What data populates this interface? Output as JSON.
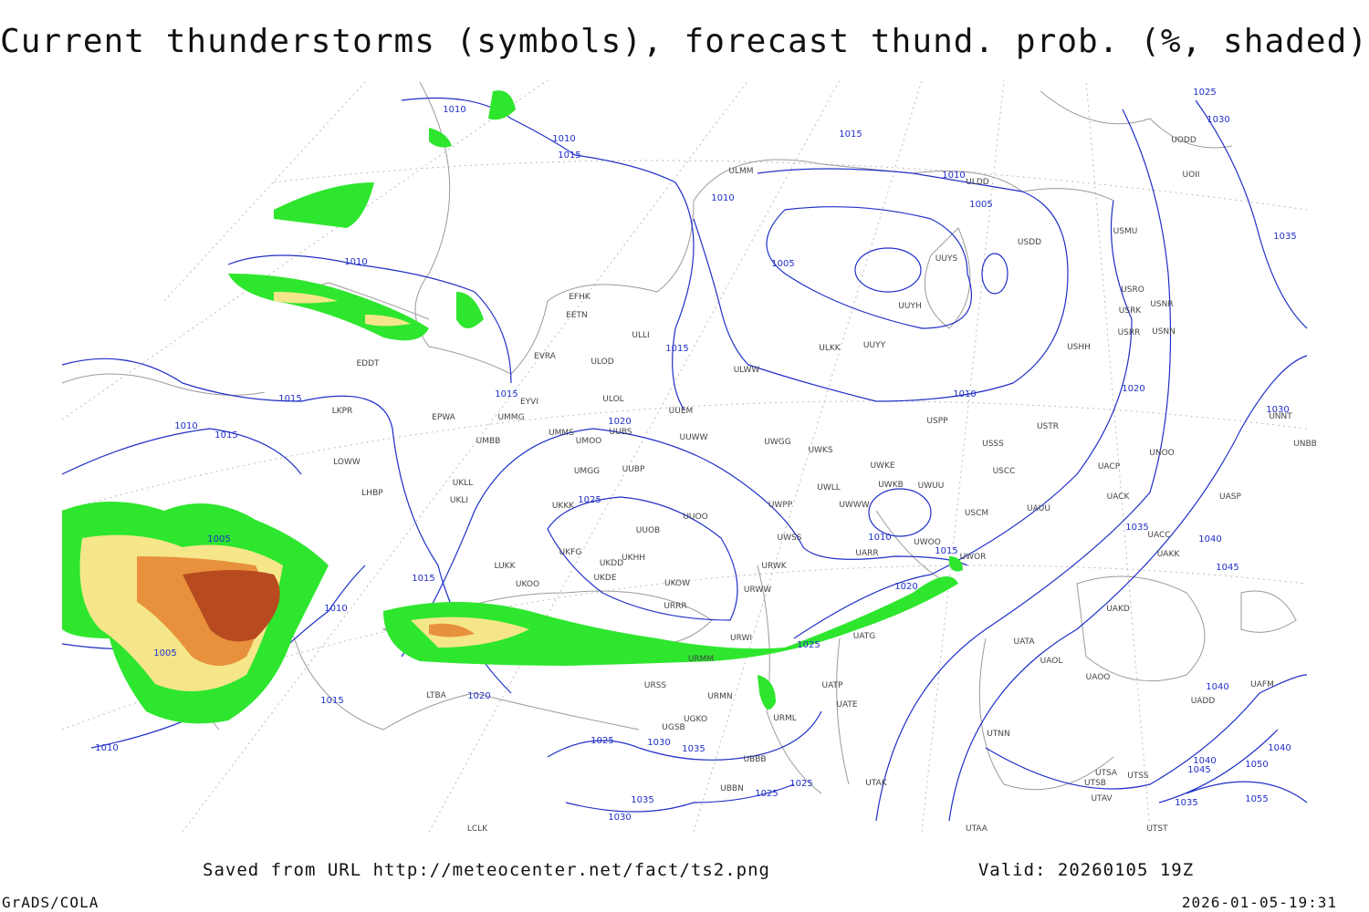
{
  "header": {
    "title": "Current thunderstorms (symbols), forecast thund. prob. (%, shaded)"
  },
  "stations": [
    "EFHK",
    "EETN",
    "EVRA",
    "ULOD",
    "EDDT",
    "EYVI",
    "ULOL",
    "EPWA",
    "UMMG",
    "UUEM",
    "UMMS",
    "UMOO",
    "UUBS",
    "UUWW",
    "UMBB",
    "LKPR",
    "LOWW",
    "LHBP",
    "UKLL",
    "UKLI",
    "UMGG",
    "UUBP",
    "UKKK",
    "UUOO",
    "UUOB",
    "LUKK",
    "UKHH",
    "UKDD",
    "UKFG",
    "UKDE",
    "UKOO",
    "UKOW",
    "URRR",
    "URWI",
    "URMM",
    "URSS",
    "URMN",
    "UGKO",
    "UGSB",
    "UBBB",
    "UBBN",
    "LTBA",
    "UWGG",
    "UWKS",
    "UWKE",
    "UWKB",
    "UWUU",
    "UWWW",
    "UWLL",
    "UWPP",
    "UWSS",
    "URWK",
    "URWW",
    "UARR",
    "UWOO",
    "UATG",
    "UATE",
    "UATP",
    "URML",
    "UTAK",
    "UTSA",
    "UTSS",
    "UTSB",
    "UTAV",
    "UTST",
    "UTAA",
    "LCLK",
    "UAOL",
    "UATA",
    "UAOO",
    "UAKD",
    "UACC",
    "UAKK",
    "UACP",
    "UACK",
    "UASP",
    "UNOO",
    "USCC",
    "USSS",
    "USTR",
    "USCM",
    "UAUU",
    "UWOR",
    "USPP",
    "USHH",
    "USRR",
    "USNN",
    "USRK",
    "USNR",
    "USRO",
    "USMU",
    "USDD",
    "UUYS",
    "UUYH",
    "UUYY",
    "ULKK",
    "ULWW",
    "ULLI",
    "ULMM",
    "ULDD",
    "UODD",
    "UOII",
    "UNNT",
    "UNBB",
    "UAFM",
    "UADD",
    "UTNN"
  ],
  "isobars": [
    1010,
    1010,
    1015,
    1015,
    1010,
    1005,
    1010,
    1005,
    1010,
    1015,
    1015,
    1015,
    1010,
    1015,
    1020,
    1010,
    1020,
    1025,
    1030,
    1035,
    1030,
    1025,
    1005,
    1015,
    1010,
    1005,
    1010,
    1015,
    1020,
    1025,
    1010,
    1015,
    1020,
    1035,
    1040,
    1045,
    1040,
    1025,
    1030,
    1035,
    1035,
    1030,
    1025,
    1025,
    1040,
    1040,
    1045,
    1050,
    1055,
    1035
  ],
  "footer": {
    "source": "Saved from URL http://meteocenter.net/fact/ts2.png",
    "valid": "Valid: 20260105 19Z",
    "software": "GrADS/COLA",
    "timestamp": "2026-01-05-19:31"
  }
}
